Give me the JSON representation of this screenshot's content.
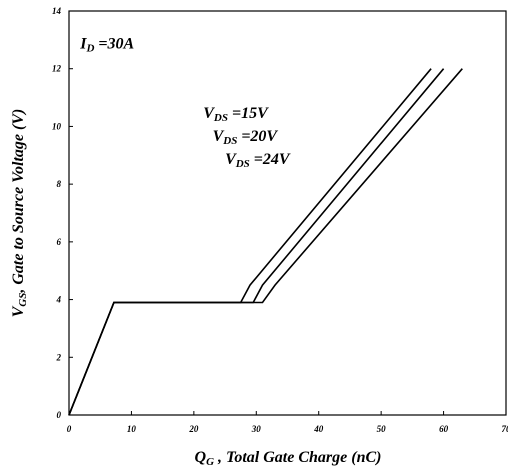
{
  "chart_data": {
    "type": "line",
    "xlabel": {
      "main": "Q",
      "sub": "G",
      "rest": " , Total Gate Charge (nC)"
    },
    "ylabel": {
      "main": "V",
      "sub": "GS",
      "rest": ", Gate to Source Voltage (V)"
    },
    "xlim": [
      0,
      70
    ],
    "ylim": [
      0,
      14
    ],
    "xticks": [
      "0",
      "10",
      "20",
      "30",
      "40",
      "50",
      "60",
      "70"
    ],
    "yticks": [
      "0",
      "2",
      "4",
      "6",
      "8",
      "10",
      "12",
      "14"
    ],
    "grid": false,
    "annotations": [
      {
        "main": "I",
        "sub": "D",
        "rest": " =30A",
        "x": 1.8,
        "y": 12.7
      },
      {
        "main": "V",
        "sub": "DS",
        "rest": " =15V",
        "x": 21.5,
        "y": 10.3
      },
      {
        "main": "V",
        "sub": "DS",
        "rest": " =20V",
        "x": 23.0,
        "y": 9.5
      },
      {
        "main": "V",
        "sub": "DS",
        "rest": " =24V",
        "x": 25.0,
        "y": 8.7
      }
    ],
    "series": [
      {
        "x": [
          0,
          7.2,
          27.5,
          29,
          58
        ],
        "y": [
          0,
          3.9,
          3.9,
          4.5,
          12
        ]
      },
      {
        "x": [
          0,
          7.2,
          29.5,
          31,
          60
        ],
        "y": [
          0,
          3.9,
          3.9,
          4.5,
          12
        ]
      },
      {
        "x": [
          0,
          7.2,
          31,
          33,
          63
        ],
        "y": [
          0,
          3.9,
          3.9,
          4.5,
          12
        ]
      }
    ]
  }
}
